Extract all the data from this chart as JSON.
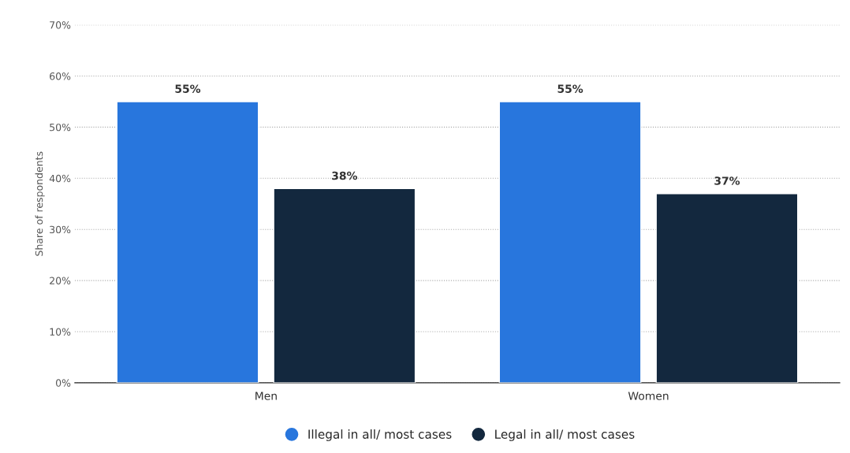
{
  "chart_data": {
    "type": "bar",
    "ylabel": "Share of respondents",
    "categories": [
      "Men",
      "Women"
    ],
    "series": [
      {
        "name": "Illegal in all/ most cases",
        "color": "#2876dd",
        "values": [
          55,
          55
        ],
        "value_labels": [
          "55%",
          "55%"
        ]
      },
      {
        "name": "Legal in all/ most cases",
        "color": "#13283e",
        "values": [
          38,
          37
        ],
        "value_labels": [
          "38%",
          "37%"
        ]
      }
    ],
    "ylim": [
      0,
      70
    ],
    "yticks": [
      {
        "value": 0,
        "label": "0%"
      },
      {
        "value": 10,
        "label": "10%"
      },
      {
        "value": 20,
        "label": "20%"
      },
      {
        "value": 30,
        "label": "30%"
      },
      {
        "value": 40,
        "label": "40%"
      },
      {
        "value": 50,
        "label": "50%"
      },
      {
        "value": 60,
        "label": "60%"
      },
      {
        "value": 70,
        "label": "70%"
      }
    ],
    "grid": "y",
    "legend": "bottom"
  }
}
